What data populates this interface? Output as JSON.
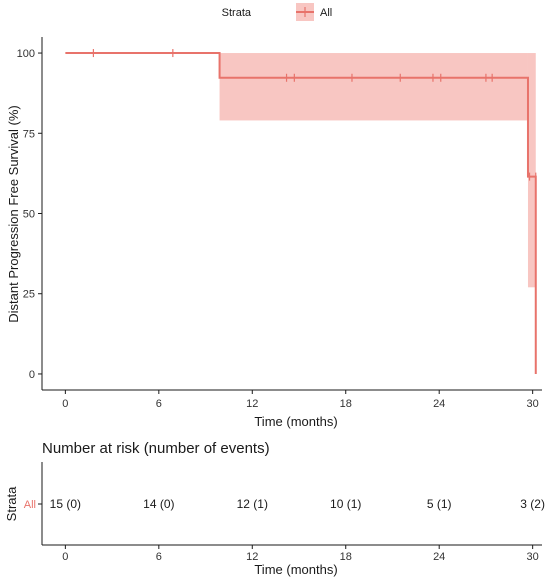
{
  "chart_data": [
    {
      "type": "line",
      "subtype": "kaplan-meier step curve with confidence band",
      "ylabel": "Distant Progression Free Survival (%)",
      "xlabel": "Time (months)",
      "xlim": [
        -1.5,
        30.6
      ],
      "ylim": [
        -5,
        105
      ],
      "x_ticks": [
        0,
        6,
        12,
        18,
        24,
        30
      ],
      "y_ticks": [
        0,
        25,
        50,
        75,
        100
      ],
      "grid": false,
      "legend": {
        "placement": "top-center",
        "title": "Strata",
        "entries": [
          "All"
        ]
      },
      "colors": {
        "series": "#e8736b",
        "band": "#f8c6c2"
      },
      "series": [
        {
          "name": "All",
          "steps": [
            {
              "x": 0,
              "y": 100
            },
            {
              "x": 9.9,
              "y": 92.3
            },
            {
              "x": 29.7,
              "y": 61.5
            },
            {
              "x": 30.2,
              "y": 0
            }
          ],
          "end_x": 30.2,
          "censor_x": [
            1.8,
            6.9,
            14.2,
            14.7,
            18.4,
            21.5,
            23.6,
            24.1,
            27.0,
            27.4,
            29.8,
            30.2
          ],
          "ci": [
            {
              "x0": 0,
              "x1": 9.9,
              "lower": 100,
              "upper": 100
            },
            {
              "x0": 9.9,
              "x1": 29.7,
              "lower": 79,
              "upper": 100
            },
            {
              "x0": 29.7,
              "x1": 30.2,
              "lower": 27,
              "upper": 100
            }
          ]
        }
      ]
    },
    {
      "type": "table",
      "title": "Number at risk (number of events)",
      "ylabel": "Strata",
      "xlabel": "Time (months)",
      "row_label": "All",
      "x_ticks": [
        0,
        6,
        12,
        18,
        24,
        30
      ],
      "values": [
        "15 (0)",
        "14 (0)",
        "12 (1)",
        "10 (1)",
        "5 (1)",
        "3 (2)"
      ]
    }
  ]
}
